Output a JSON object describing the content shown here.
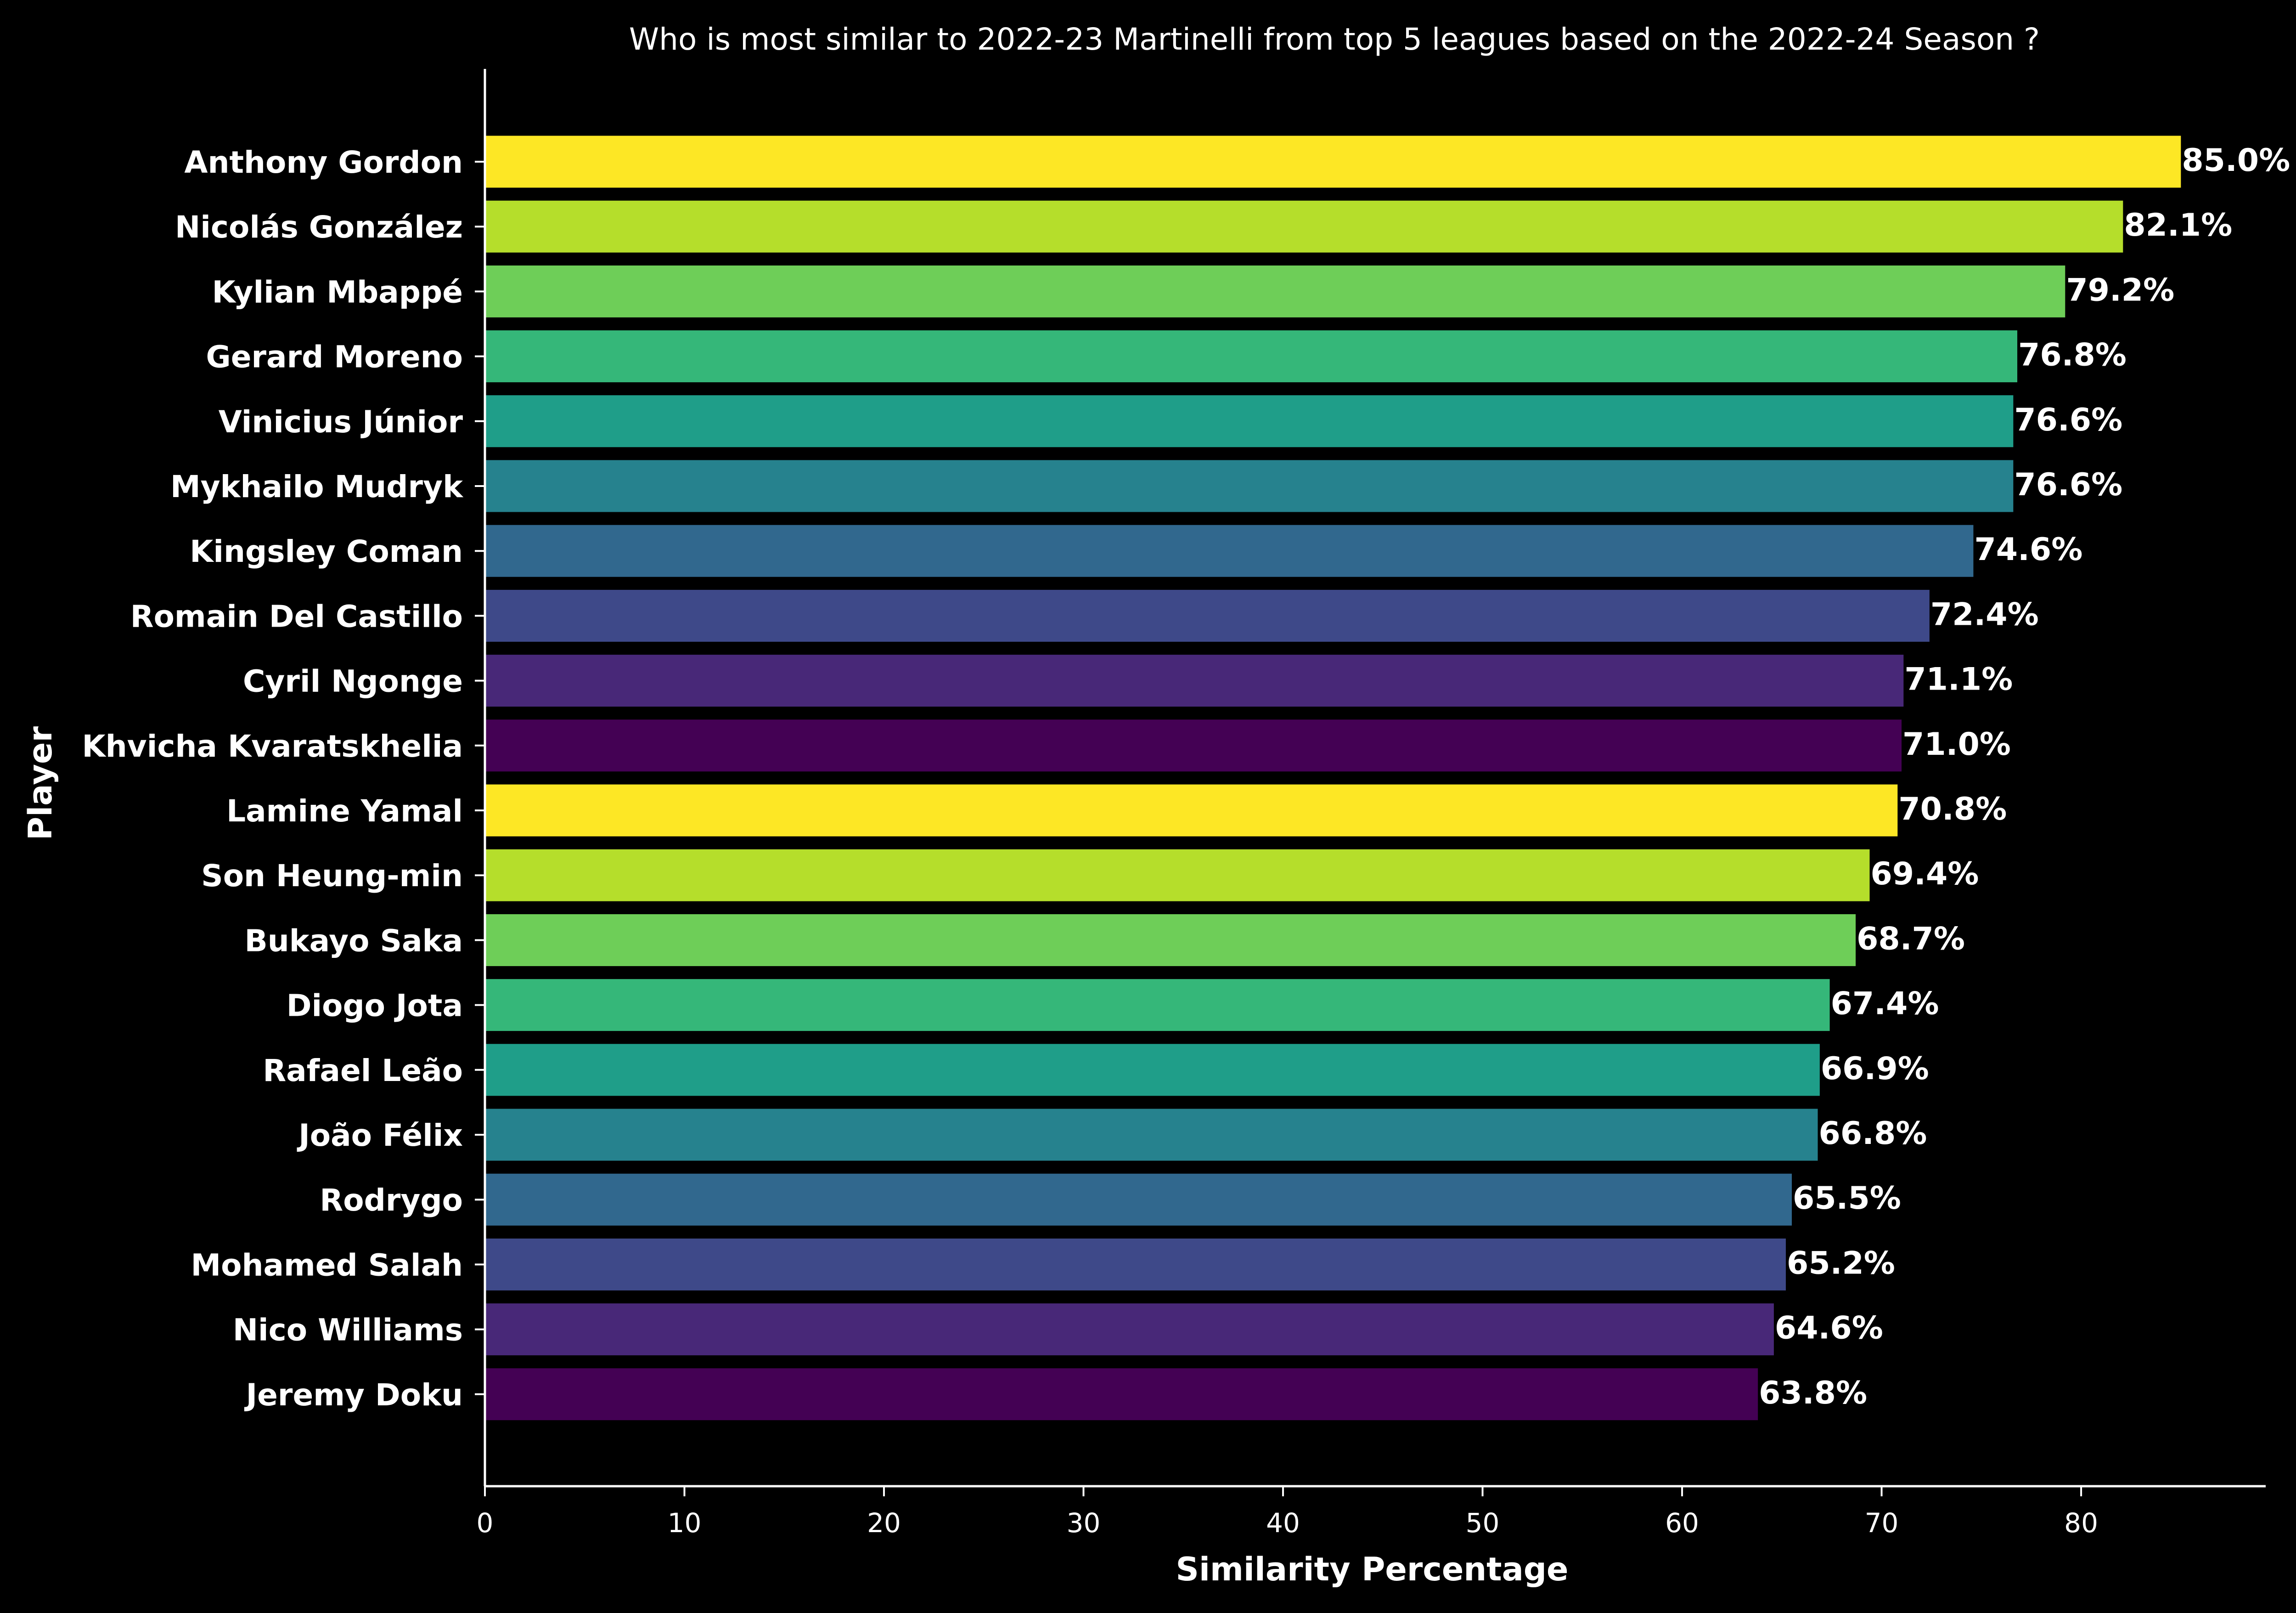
{
  "chart_data": {
    "type": "bar",
    "orientation": "horizontal",
    "title": "Who is most similar to 2022-23 Martinelli from top 5 leagues based on the 2022-24 Season ?",
    "xlabel": "Similarity Percentage",
    "ylabel": "Player",
    "xlim": [
      0,
      89.25
    ],
    "xticks": [
      "0",
      "10",
      "20",
      "30",
      "40",
      "50",
      "60",
      "70",
      "80"
    ],
    "grid": false,
    "legend": "none",
    "value_suffix": "%",
    "categories": [
      "Anthony Gordon",
      "Nicolás González",
      "Kylian Mbappé",
      "Gerard Moreno",
      "Vinicius Júnior",
      "Mykhailo Mudryk",
      "Kingsley Coman",
      "Romain Del Castillo",
      "Cyril Ngonge",
      "Khvicha Kvaratskhelia",
      "Lamine Yamal",
      "Son Heung-min",
      "Bukayo Saka",
      "Diogo Jota",
      "Rafael Leão",
      "João Félix",
      "Rodrygo",
      "Mohamed Salah",
      "Nico Williams",
      "Jeremy Doku"
    ],
    "values": [
      85.0,
      82.1,
      79.2,
      76.8,
      76.6,
      76.6,
      74.6,
      72.4,
      71.1,
      71.0,
      70.8,
      69.4,
      68.7,
      67.4,
      66.9,
      66.8,
      65.5,
      65.2,
      64.6,
      63.8
    ],
    "value_labels": [
      "85.0%",
      "82.1%",
      "79.2%",
      "76.8%",
      "76.6%",
      "76.6%",
      "74.6%",
      "72.4%",
      "71.1%",
      "71.0%",
      "70.8%",
      "69.4%",
      "68.7%",
      "67.4%",
      "66.9%",
      "66.8%",
      "65.5%",
      "65.2%",
      "64.6%",
      "63.8%"
    ],
    "colors": [
      "#fde725",
      "#b5de2b",
      "#6ece58",
      "#35b779",
      "#1f9e89",
      "#26828e",
      "#31688e",
      "#3e4989",
      "#482878",
      "#440154",
      "#fde725",
      "#b5de2b",
      "#6ece58",
      "#35b779",
      "#1f9e89",
      "#26828e",
      "#31688e",
      "#3e4989",
      "#482878",
      "#440154"
    ]
  }
}
